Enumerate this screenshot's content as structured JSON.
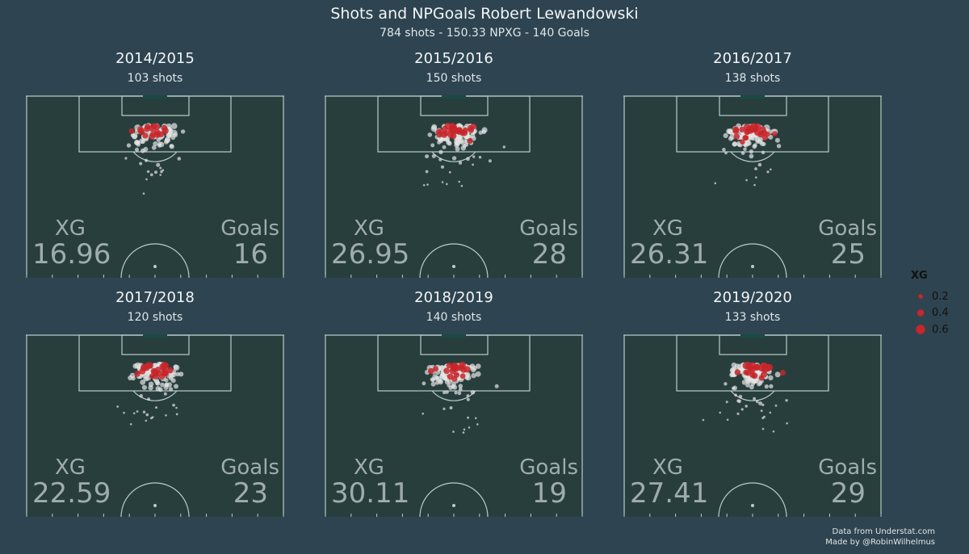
{
  "header": {
    "title": "Shots and NPGoals Robert Lewandowski",
    "subtitle": "784 shots - 150.33 NPXG - 140 Goals"
  },
  "labels": {
    "xg": "XG",
    "goals": "Goals"
  },
  "legend": {
    "title": "XG",
    "items": [
      {
        "label": "0.2",
        "value": 0.2
      },
      {
        "label": "0.4",
        "value": 0.4
      },
      {
        "label": "0.6",
        "value": 0.6
      }
    ],
    "color": "#c8262a"
  },
  "credit": {
    "line1": "Data from Understat.com",
    "line2": "Made by @RobinWilhelmus"
  },
  "colors": {
    "background": "#2e4450",
    "pitch": "#283e3d",
    "lines": "#b9cccb",
    "goal": "#c8262a",
    "miss": "#e4e6e6"
  },
  "chart_data": [
    {
      "type": "scatter",
      "season": "2014/2015",
      "shots_label": "103 shots",
      "xg": "16.96",
      "goals": "16"
    },
    {
      "type": "scatter",
      "season": "2015/2016",
      "shots_label": "150 shots",
      "xg": "26.95",
      "goals": "28"
    },
    {
      "type": "scatter",
      "season": "2016/2017",
      "shots_label": "138 shots",
      "xg": "26.31",
      "goals": "25"
    },
    {
      "type": "scatter",
      "season": "2017/2018",
      "shots_label": "120 shots",
      "xg": "22.59",
      "goals": "23"
    },
    {
      "type": "scatter",
      "season": "2018/2019",
      "shots_label": "140 shots",
      "xg": "30.11",
      "goals": "19"
    },
    {
      "type": "scatter",
      "season": "2019/2020",
      "shots_label": "133 shots",
      "xg": "27.41",
      "goals": "29"
    }
  ]
}
